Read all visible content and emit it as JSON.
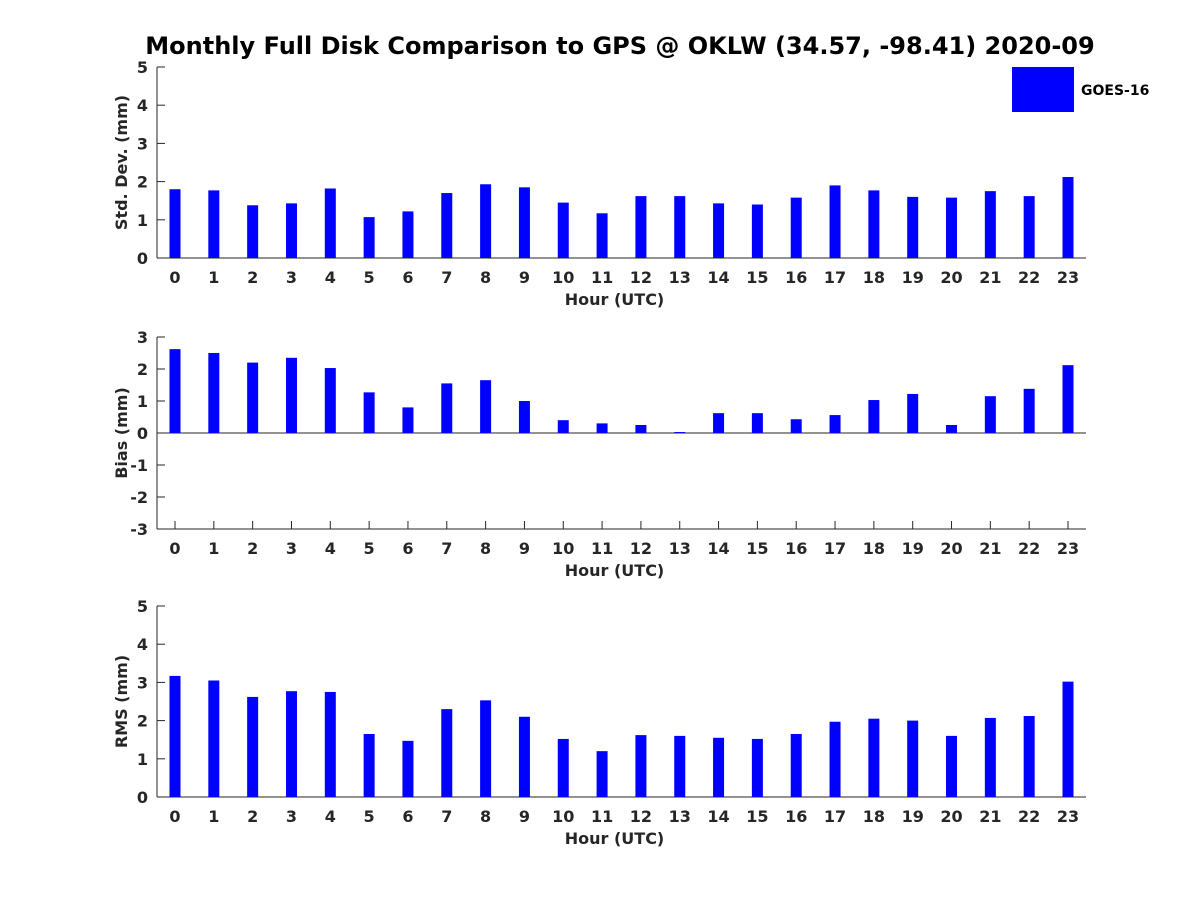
{
  "title": "Monthly Full Disk Comparison to GPS @ OKLW (34.57, -98.41) 2020-09",
  "legend": {
    "label": "GOES-16",
    "color": "#0000ff"
  },
  "chart_data": [
    {
      "type": "bar",
      "name": "stddev",
      "xlabel": "Hour (UTC)",
      "ylabel": "Std. Dev. (mm)",
      "ylim": [
        0,
        5
      ],
      "yticks": [
        "0",
        "1",
        "2",
        "3",
        "4",
        "5"
      ],
      "categories": [
        "0",
        "1",
        "2",
        "3",
        "4",
        "5",
        "6",
        "7",
        "8",
        "9",
        "10",
        "11",
        "12",
        "13",
        "14",
        "15",
        "16",
        "17",
        "18",
        "19",
        "20",
        "21",
        "22",
        "23"
      ],
      "series": [
        {
          "name": "GOES-16",
          "color": "#0000ff",
          "values": [
            1.8,
            1.77,
            1.38,
            1.43,
            1.82,
            1.07,
            1.22,
            1.7,
            1.93,
            1.85,
            1.45,
            1.17,
            1.62,
            1.62,
            1.43,
            1.4,
            1.58,
            1.9,
            1.77,
            1.6,
            1.58,
            1.75,
            1.62,
            2.12
          ]
        }
      ]
    },
    {
      "type": "bar",
      "name": "bias",
      "xlabel": "Hour (UTC)",
      "ylabel": "Bias (mm)",
      "ylim": [
        -3,
        3
      ],
      "yticks": [
        "-3",
        "-2",
        "-1",
        "0",
        "1",
        "2",
        "3"
      ],
      "categories": [
        "0",
        "1",
        "2",
        "3",
        "4",
        "5",
        "6",
        "7",
        "8",
        "9",
        "10",
        "11",
        "12",
        "13",
        "14",
        "15",
        "16",
        "17",
        "18",
        "19",
        "20",
        "21",
        "22",
        "23"
      ],
      "series": [
        {
          "name": "GOES-16",
          "color": "#0000ff",
          "values": [
            2.62,
            2.5,
            2.2,
            2.35,
            2.03,
            1.27,
            0.8,
            1.55,
            1.65,
            1.0,
            0.4,
            0.3,
            0.25,
            0.03,
            0.62,
            0.62,
            0.43,
            0.56,
            1.03,
            1.22,
            0.25,
            1.15,
            1.38,
            2.12
          ]
        }
      ]
    },
    {
      "type": "bar",
      "name": "rms",
      "xlabel": "Hour (UTC)",
      "ylabel": "RMS (mm)",
      "ylim": [
        0,
        5
      ],
      "yticks": [
        "0",
        "1",
        "2",
        "3",
        "4",
        "5"
      ],
      "categories": [
        "0",
        "1",
        "2",
        "3",
        "4",
        "5",
        "6",
        "7",
        "8",
        "9",
        "10",
        "11",
        "12",
        "13",
        "14",
        "15",
        "16",
        "17",
        "18",
        "19",
        "20",
        "21",
        "22",
        "23"
      ],
      "series": [
        {
          "name": "GOES-16",
          "color": "#0000ff",
          "values": [
            3.17,
            3.05,
            2.62,
            2.77,
            2.75,
            1.65,
            1.47,
            2.3,
            2.53,
            2.1,
            1.52,
            1.2,
            1.62,
            1.6,
            1.55,
            1.52,
            1.65,
            1.97,
            2.05,
            2.0,
            1.6,
            2.07,
            2.12,
            3.02
          ]
        }
      ]
    }
  ]
}
